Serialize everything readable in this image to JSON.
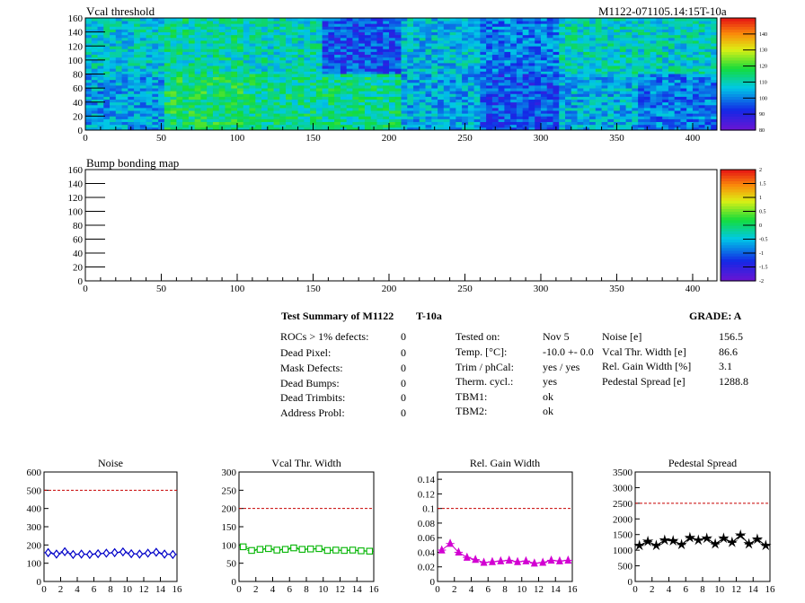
{
  "header": {
    "title_left": "Vcal threshold",
    "title_right": "M1122-071105.14:15T-10a"
  },
  "bump_map": {
    "title": "Bump bonding map"
  },
  "summary": {
    "title": "Test Summary of M1122",
    "tag": "T-10a",
    "grade": "GRADE:  A",
    "defects": [
      {
        "label": "ROCs > 1% defects:",
        "value": "0"
      },
      {
        "label": "Dead Pixel:",
        "value": "0"
      },
      {
        "label": "Mask Defects:",
        "value": "0"
      },
      {
        "label": "Dead Bumps:",
        "value": "0"
      },
      {
        "label": "Dead Trimbits:",
        "value": "0"
      },
      {
        "label": "Address Probl:",
        "value": "0"
      }
    ],
    "conditions": [
      {
        "label": "Tested on:",
        "value": "Nov 5"
      },
      {
        "label": "Temp. [°C]:",
        "value": "-10.0 +- 0.0"
      },
      {
        "label": "Trim / phCal:",
        "value": "yes / yes"
      },
      {
        "label": "Therm. cycl.:",
        "value": "yes"
      },
      {
        "label": "TBM1:",
        "value": "ok"
      },
      {
        "label": "TBM2:",
        "value": "ok"
      }
    ],
    "metrics": [
      {
        "label": "Noise [e]",
        "value": "156.5"
      },
      {
        "label": "Vcal Thr. Width [e]",
        "value": "86.6"
      },
      {
        "label": "Rel. Gain Width [%]",
        "value": "3.1"
      },
      {
        "label": "Pedestal Spread [e]",
        "value": "1288.8"
      }
    ]
  },
  "chart_data": [
    {
      "type": "heatmap",
      "title": "Vcal threshold",
      "xlim": [
        0,
        416
      ],
      "ylim": [
        0,
        160
      ],
      "xticks": [
        0,
        50,
        100,
        150,
        200,
        250,
        300,
        350,
        400
      ],
      "yticks": [
        0,
        20,
        40,
        60,
        80,
        100,
        120,
        140,
        160
      ],
      "colorbar_ticks": [
        80,
        90,
        100,
        110,
        120,
        130,
        140
      ],
      "colorbar_range": [
        80,
        150
      ],
      "roc_columns": 8,
      "roc_rows": 2,
      "roc_mean_values": [
        [
          108,
          112,
          110,
          96,
          106,
          100,
          110,
          109
        ],
        [
          103,
          116,
          113,
          113,
          104,
          96,
          105,
          100
        ]
      ]
    },
    {
      "type": "heatmap",
      "title": "Bump bonding map",
      "xlim": [
        0,
        416
      ],
      "ylim": [
        0,
        160
      ],
      "xticks": [
        0,
        50,
        100,
        150,
        200,
        250,
        300,
        350,
        400
      ],
      "yticks": [
        0,
        20,
        40,
        60,
        80,
        100,
        120,
        140,
        160
      ],
      "colorbar_ticks": [
        -2,
        -1.5,
        -1,
        -0.5,
        0,
        0.5,
        1,
        1.5,
        2
      ],
      "colorbar_range": [
        -2,
        2
      ],
      "values": []
    },
    {
      "type": "line",
      "title": "Noise",
      "x": [
        0,
        1,
        2,
        3,
        4,
        5,
        6,
        7,
        8,
        9,
        10,
        11,
        12,
        13,
        14,
        15
      ],
      "values": [
        158,
        150,
        163,
        148,
        150,
        148,
        152,
        155,
        158,
        162,
        152,
        150,
        155,
        160,
        150,
        148
      ],
      "reference": 500,
      "xlim": [
        0,
        16
      ],
      "ylim": [
        0,
        600
      ],
      "xticks": [
        0,
        2,
        4,
        6,
        8,
        10,
        12,
        14,
        16
      ],
      "yticks": [
        0,
        100,
        200,
        300,
        400,
        500,
        600
      ],
      "tick_labels": [
        "0",
        "100",
        "200",
        "300",
        "400",
        "500",
        "600"
      ],
      "marker": "diamond",
      "color": "#0000c8"
    },
    {
      "type": "line",
      "title": "Vcal Thr. Width",
      "x": [
        0,
        1,
        2,
        3,
        4,
        5,
        6,
        7,
        8,
        9,
        10,
        11,
        12,
        13,
        14,
        15
      ],
      "values": [
        95,
        85,
        88,
        90,
        86,
        88,
        92,
        88,
        89,
        90,
        85,
        86,
        85,
        86,
        84,
        83
      ],
      "reference": 200,
      "xlim": [
        0,
        16
      ],
      "ylim": [
        0,
        300
      ],
      "xticks": [
        0,
        2,
        4,
        6,
        8,
        10,
        12,
        14,
        16
      ],
      "yticks": [
        0,
        50,
        100,
        150,
        200,
        250,
        300
      ],
      "tick_labels": [
        "0",
        "50",
        "100",
        "150",
        "200",
        "250",
        "300"
      ],
      "marker": "square",
      "color": "#00b400"
    },
    {
      "type": "line",
      "title": "Rel. Gain Width",
      "x": [
        0,
        1,
        2,
        3,
        4,
        5,
        6,
        7,
        8,
        9,
        10,
        11,
        12,
        13,
        14,
        15
      ],
      "values": [
        0.043,
        0.052,
        0.04,
        0.033,
        0.03,
        0.026,
        0.027,
        0.028,
        0.029,
        0.027,
        0.028,
        0.025,
        0.026,
        0.029,
        0.028,
        0.029
      ],
      "reference": 0.1,
      "xlim": [
        0,
        16
      ],
      "ylim": [
        0,
        0.15
      ],
      "xticks": [
        0,
        2,
        4,
        6,
        8,
        10,
        12,
        14,
        16
      ],
      "yticks": [
        0,
        0.02,
        0.04,
        0.06,
        0.08,
        0.1,
        0.12,
        0.14
      ],
      "tick_labels": [
        "0",
        "0.02",
        "0.04",
        "0.06",
        "0.08",
        "0.1",
        "0.12",
        "0.14"
      ],
      "marker": "triangle",
      "color": "#d200d2"
    },
    {
      "type": "line",
      "title": "Pedestal Spread",
      "x": [
        0,
        1,
        2,
        3,
        4,
        5,
        6,
        7,
        8,
        9,
        10,
        11,
        12,
        13,
        14,
        15
      ],
      "values": [
        1150,
        1280,
        1150,
        1320,
        1300,
        1180,
        1400,
        1320,
        1380,
        1200,
        1380,
        1250,
        1480,
        1200,
        1350,
        1150
      ],
      "reference": 2500,
      "xlim": [
        0,
        16
      ],
      "ylim": [
        0,
        3500
      ],
      "xticks": [
        0,
        2,
        4,
        6,
        8,
        10,
        12,
        14,
        16
      ],
      "yticks": [
        0,
        500,
        1000,
        1500,
        2000,
        2500,
        3000,
        3500
      ],
      "tick_labels": [
        "0",
        "500",
        "1000",
        "1500",
        "2000",
        "2500",
        "3000",
        "3500"
      ],
      "marker": "star",
      "color": "#000000"
    }
  ]
}
